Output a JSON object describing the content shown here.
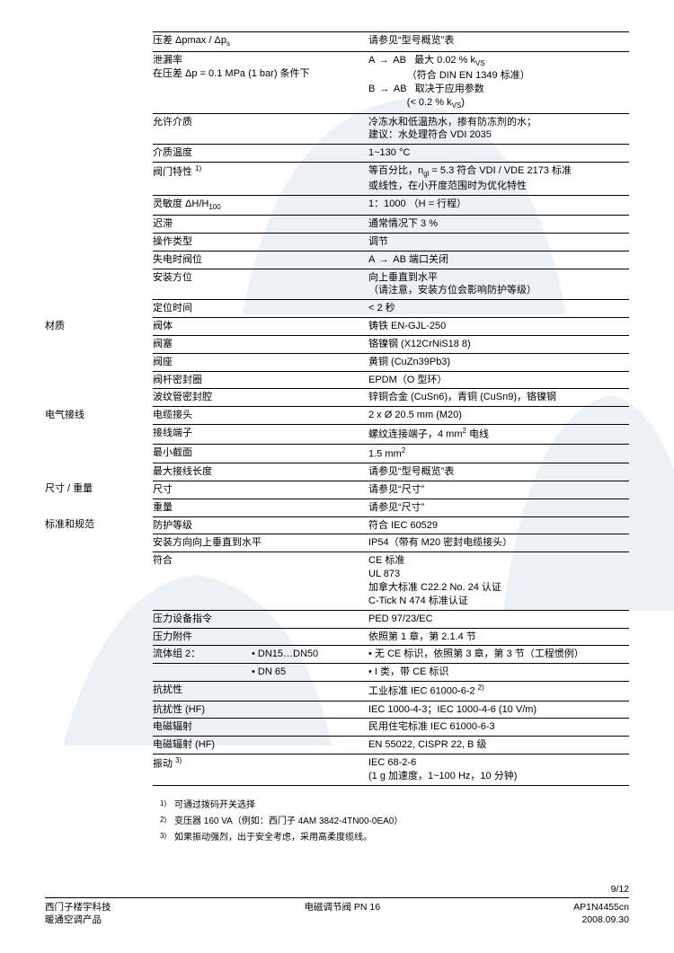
{
  "rows": [
    {
      "section": "",
      "label": "压差 Δpmax / Δp<sub>s</sub>",
      "value": "请参见“型号概览”表",
      "bt": 1
    },
    {
      "section": "",
      "label": "泄漏率<br>在压差 Δp = 0.1 MPa (1 bar) 条件下",
      "value": "A <span class='arrow'></span> AB&nbsp;&nbsp;&nbsp;最大 0.02 % k<sub>VS</sub><br>&nbsp;&nbsp;&nbsp;&nbsp;&nbsp;&nbsp;&nbsp;&nbsp;&nbsp;&nbsp;&nbsp;&nbsp;&nbsp;&nbsp;（符合 DIN EN 1349 标准）<br>B <span class='arrow'></span> AB&nbsp;&nbsp;&nbsp;取决于应用参数<br>&nbsp;&nbsp;&nbsp;&nbsp;&nbsp;&nbsp;&nbsp;&nbsp;&nbsp;&nbsp;&nbsp;&nbsp;&nbsp;&nbsp;(&lt; 0.2 % k<sub>VS</sub>)",
      "bt": 1
    },
    {
      "section": "",
      "label": "允许介质",
      "value": "冷冻水和低温热水，掺有防冻剂的水；<br>建议：水处理符合 VDI 2035",
      "bt": 1
    },
    {
      "section": "",
      "label": "介质温度",
      "value": "1~130 °C",
      "bt": 1
    },
    {
      "section": "",
      "label": "阀门特性 <sup>1)</sup>",
      "value": "等百分比，n<sub>gl</sub> = 5.3 符合 VDI / VDE 2173 标准<br>或线性，在小开度范围时为优化特性",
      "bt": 1
    },
    {
      "section": "",
      "label": "灵敏度  ΔH/H<sub>100</sub>",
      "value": "1：1000  （H = 行程）",
      "bt": 1
    },
    {
      "section": "",
      "label": "迟滞",
      "value": "通常情况下 3 %",
      "bt": 1
    },
    {
      "section": "",
      "label": "操作类型",
      "value": "调节",
      "bt": 1
    },
    {
      "section": "",
      "label": "失电时阀位",
      "value": "A <span class='arrow'></span> AB 端口关闭",
      "bt": 1
    },
    {
      "section": "",
      "label": "安装方位",
      "value": "向上垂直到水平<br>（请注意，安装方位会影响防护等级）",
      "bt": 1
    },
    {
      "section": "",
      "label": "定位时间",
      "value": "&lt; 2 秒",
      "bt": 1
    },
    {
      "section": "材质",
      "label": "阀体",
      "value": "铸铁 EN-GJL-250",
      "bt": 1
    },
    {
      "section": "",
      "label": "阀塞",
      "value": "铬镍钢 (X12CrNiS18 8)",
      "bt": 1
    },
    {
      "section": "",
      "label": "阀座",
      "value": "黄铜 (CuZn39Pb3)",
      "bt": 1
    },
    {
      "section": "",
      "label": "阀杆密封圈",
      "value": "EPDM（O 型环）",
      "bt": 1
    },
    {
      "section": "",
      "label": "波纹管密封腔",
      "value": "锌铜合金 (CuSn6)，青铜 (CuSn9)，铬镍钢",
      "bt": 1
    },
    {
      "section": "电气接线",
      "label": "电缆接头",
      "value": "2 x Ø 20.5 mm (M20)",
      "bt": 1
    },
    {
      "section": "",
      "label": "接线端子",
      "value": "螺纹连接端子，4 mm<sup>2</sup> 电线",
      "bt": 1
    },
    {
      "section": "",
      "label": "最小截面",
      "value": "1.5 mm<sup>2</sup>",
      "bt": 1
    },
    {
      "section": "",
      "label": "最大接线长度",
      "value": "请参见“型号概览”表",
      "bt": 1
    },
    {
      "section": "尺寸 / 重量",
      "label": "尺寸",
      "value": "请参见“尺寸”",
      "bt": 1
    },
    {
      "section": "",
      "label": "重量",
      "value": "请参见“尺寸”",
      "bt": 1
    },
    {
      "section": "标准和规范",
      "label": "防护等级",
      "value": "符合 IEC 60529",
      "bt": 1
    },
    {
      "section": "",
      "label": "安装方向向上垂直到水平",
      "value": "IP54（带有 M20 密封电缆接头）",
      "bt": 1
    },
    {
      "section": "",
      "label": "符合",
      "value": "CE 标准<br>UL 873<br>加拿大标准 C22.2 No. 24 认证<br>C-Tick N 474 标准认证",
      "bt": 1
    },
    {
      "section": "",
      "label": "压力设备指令",
      "value": "PED 97/23/EC",
      "bt": 1
    },
    {
      "section": "",
      "label": "压力附件",
      "value": "依照第 1 章，第 2.1.4 节",
      "bt": 1
    },
    {
      "section": "",
      "label": "<span class='inner-label' style='width:110px'>流体组 2：</span>• DN15…DN50",
      "value": "• 无 CE 标识，依照第 3 章，第 3 节（工程惯例）",
      "bt": 1
    },
    {
      "section": "",
      "label": "<span class='inner-label' style='width:110px'></span>• DN 65",
      "value": "• I 类，带 CE 标识",
      "bt": 1
    },
    {
      "section": "",
      "label": "抗扰性",
      "value": "工业标准 IEC 61000-6-2 <sup>2)</sup>",
      "bt": 1
    },
    {
      "section": "",
      "label": "抗扰性 (HF)",
      "value": "IEC 1000-4-3；IEC 1000-4-6 (10 V/m)",
      "bt": 1
    },
    {
      "section": "",
      "label": "电磁辐射",
      "value": "民用住宅标准 IEC 61000-6-3",
      "bt": 1
    },
    {
      "section": "",
      "label": "电磁辐射 (HF)",
      "value": "EN 55022, CISPR 22, B 级",
      "bt": 1
    },
    {
      "section": "",
      "label": "振动 <sup>3)</sup>",
      "value": "IEC 68-2-6<br>(1 g 加速度，1~100 Hz，10 分钟)",
      "bt": 1,
      "bb": 1
    }
  ],
  "footnotes": [
    {
      "n": "1)",
      "t": "可通过拨码开关选择"
    },
    {
      "n": "2)",
      "t": "变压器 160 VA（例如：西门子 4AM 3842-4TN00-0EA0）"
    },
    {
      "n": "3)",
      "t": "如果振动强烈，出于安全考虑，采用高柔度缆线。"
    }
  ],
  "footer": {
    "page": "9/12",
    "left1": "西门子楼宇科技",
    "left2": "暖通空调产品",
    "center": "电磁调节阀 PN 16",
    "right1": "AP1N4455cn",
    "right2": "2008.09.30"
  }
}
